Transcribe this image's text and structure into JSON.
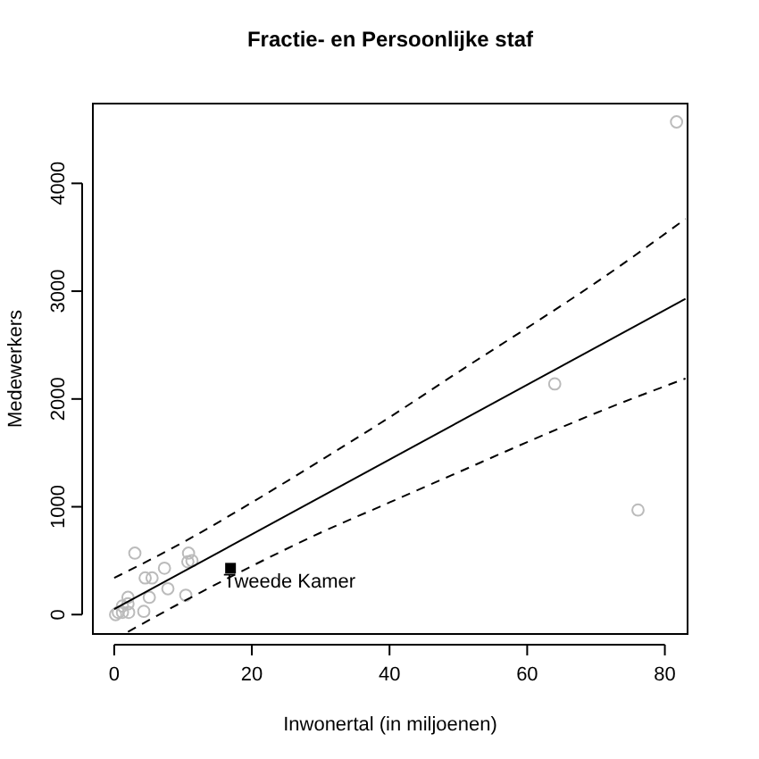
{
  "chart_data": {
    "type": "scatter",
    "title": "Fractie- en Persoonlijke staf",
    "xlabel": "Inwonertal (in miljoenen)",
    "ylabel": "Medewerkers",
    "xlim": [
      -3.1,
      83.3
    ],
    "ylim": [
      -180,
      4740
    ],
    "xticks": [
      0,
      20,
      40,
      60,
      80
    ],
    "yticks": [
      0,
      1000,
      2000,
      3000,
      4000
    ],
    "grid": false,
    "series": [
      {
        "color": "#bbbbbb",
        "marker": "circle",
        "x": [
          81.7,
          64.0,
          76.1,
          3.0,
          10.8,
          10.7,
          11.3,
          7.3,
          4.5,
          5.5,
          7.8,
          5.1,
          10.4,
          2.0,
          2.0,
          1.2,
          4.3,
          2.1,
          1.2,
          0.2,
          0.6
        ],
        "values": [
          4570,
          2140,
          970,
          570,
          570,
          490,
          500,
          430,
          340,
          340,
          240,
          160,
          180,
          160,
          100,
          80,
          30,
          20,
          20,
          0,
          20
        ]
      },
      {
        "name": "Tweede Kamer",
        "color": "#000000",
        "marker": "square",
        "x": [
          16.9
        ],
        "values": [
          430
        ]
      },
      {
        "type": "line",
        "color": "#000000",
        "line_style": "solid",
        "x": [
          0,
          83
        ],
        "values": [
          50,
          2930
        ]
      },
      {
        "type": "line",
        "color": "#000000",
        "line_style": "dashed",
        "x": [
          0,
          10,
          20,
          30,
          40,
          50,
          60,
          70,
          83
        ],
        "values": [
          340,
          670,
          1040,
          1430,
          1830,
          2250,
          2660,
          3080,
          3670
        ]
      },
      {
        "type": "line",
        "color": "#000000",
        "line_style": "dashed",
        "x": [
          2,
          10,
          20,
          30,
          40,
          50,
          60,
          70,
          83
        ],
        "values": [
          -160,
          120,
          450,
          760,
          1040,
          1320,
          1600,
          1870,
          2190
        ]
      }
    ]
  }
}
